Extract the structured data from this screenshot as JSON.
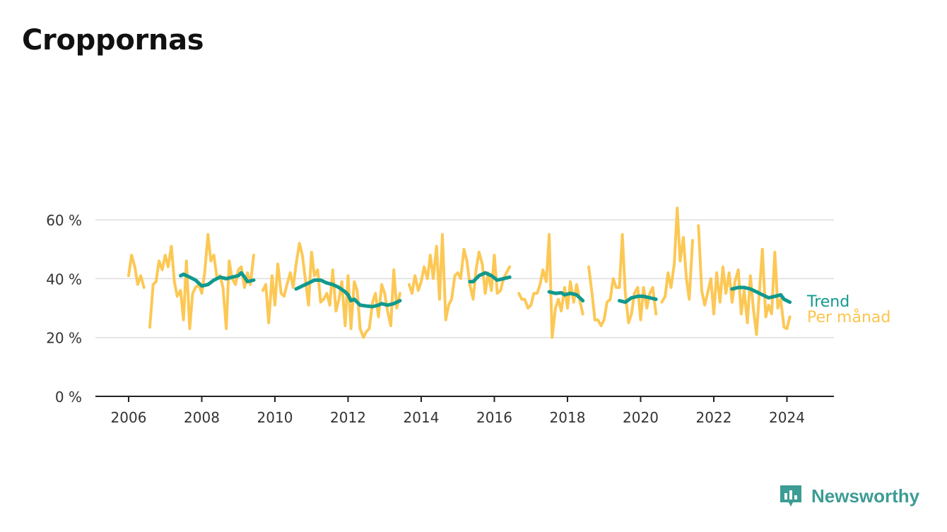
{
  "title": "Croppornas",
  "subtitle": "",
  "logo": {
    "text": "Newsworthy",
    "icon": "newsworthy-logo-icon",
    "color": "#3d9c94"
  },
  "colors": {
    "monthly": "#fcc54c",
    "trend": "#11998e",
    "grid": "#dddddd",
    "axis": "#222222",
    "text": "#333333"
  },
  "chart_data": {
    "type": "line",
    "title": "Croppornas",
    "subtitle": "",
    "xlabel": "",
    "ylabel": "",
    "ylim": [
      0,
      0.7
    ],
    "xlim": [
      2005.5,
      2025.2
    ],
    "x_ticks": [
      2006,
      2008,
      2010,
      2012,
      2014,
      2016,
      2018,
      2020,
      2022,
      2024
    ],
    "x_tick_labels": [
      "2006",
      "2008",
      "2010",
      "2012",
      "2014",
      "2016",
      "2018",
      "2020",
      "2022",
      "2024"
    ],
    "y_ticks": [
      0,
      0.2,
      0.4,
      0.6
    ],
    "y_tick_labels": [
      "0 %",
      "20 %",
      "40 %",
      "60 %"
    ],
    "grid": "horizontal",
    "legend": "inline-right",
    "series": [
      {
        "name": "Per månad",
        "color": "#fcc54c",
        "points": [
          [
            2006.0,
            0.41
          ],
          [
            2006.08,
            0.48
          ],
          [
            2006.17,
            0.44
          ],
          [
            2006.25,
            0.38
          ],
          [
            2006.33,
            0.41
          ],
          [
            2006.42,
            0.37
          ],
          null,
          [
            2006.58,
            0.235
          ],
          [
            2006.67,
            0.38
          ],
          [
            2006.75,
            0.39
          ],
          [
            2006.83,
            0.46
          ],
          [
            2006.92,
            0.43
          ],
          [
            2007.0,
            0.48
          ],
          [
            2007.08,
            0.44
          ],
          [
            2007.17,
            0.51
          ],
          [
            2007.25,
            0.39
          ],
          [
            2007.33,
            0.34
          ],
          [
            2007.42,
            0.36
          ],
          [
            2007.5,
            0.26
          ],
          [
            2007.58,
            0.46
          ],
          [
            2007.67,
            0.23
          ],
          [
            2007.75,
            0.35
          ],
          [
            2007.83,
            0.37
          ],
          [
            2007.92,
            0.38
          ],
          [
            2008.0,
            0.35
          ],
          [
            2008.08,
            0.42
          ],
          [
            2008.17,
            0.55
          ],
          [
            2008.25,
            0.46
          ],
          [
            2008.33,
            0.48
          ],
          [
            2008.42,
            0.4
          ],
          [
            2008.5,
            0.41
          ],
          [
            2008.58,
            0.37
          ],
          [
            2008.67,
            0.23
          ],
          [
            2008.75,
            0.46
          ],
          [
            2008.83,
            0.4
          ],
          [
            2008.92,
            0.38
          ],
          [
            2009.0,
            0.43
          ],
          [
            2009.08,
            0.44
          ],
          [
            2009.17,
            0.37
          ],
          [
            2009.25,
            0.42
          ],
          [
            2009.33,
            0.38
          ],
          [
            2009.42,
            0.48
          ],
          null,
          [
            2009.67,
            0.36
          ],
          [
            2009.75,
            0.38
          ],
          [
            2009.83,
            0.25
          ],
          [
            2009.92,
            0.41
          ],
          [
            2010.0,
            0.31
          ],
          [
            2010.08,
            0.45
          ],
          [
            2010.17,
            0.35
          ],
          [
            2010.25,
            0.34
          ],
          [
            2010.33,
            0.38
          ],
          [
            2010.42,
            0.42
          ],
          [
            2010.5,
            0.37
          ],
          [
            2010.58,
            0.45
          ],
          [
            2010.67,
            0.52
          ],
          [
            2010.75,
            0.48
          ],
          [
            2010.83,
            0.4
          ],
          [
            2010.92,
            0.31
          ],
          [
            2011.0,
            0.49
          ],
          [
            2011.08,
            0.41
          ],
          [
            2011.17,
            0.43
          ],
          [
            2011.25,
            0.32
          ],
          [
            2011.33,
            0.33
          ],
          [
            2011.42,
            0.35
          ],
          [
            2011.5,
            0.31
          ],
          [
            2011.58,
            0.43
          ],
          [
            2011.67,
            0.29
          ],
          [
            2011.75,
            0.33
          ],
          [
            2011.83,
            0.39
          ],
          [
            2011.92,
            0.24
          ],
          [
            2012.0,
            0.41
          ],
          [
            2012.08,
            0.23
          ],
          [
            2012.17,
            0.39
          ],
          [
            2012.25,
            0.36
          ],
          [
            2012.33,
            0.23
          ],
          [
            2012.42,
            0.2
          ],
          [
            2012.5,
            0.22
          ],
          [
            2012.58,
            0.23
          ],
          [
            2012.67,
            0.32
          ],
          [
            2012.75,
            0.35
          ],
          [
            2012.83,
            0.27
          ],
          [
            2012.92,
            0.38
          ],
          [
            2013.0,
            0.35
          ],
          [
            2013.08,
            0.29
          ],
          [
            2013.17,
            0.24
          ],
          [
            2013.25,
            0.43
          ],
          [
            2013.33,
            0.3
          ],
          [
            2013.42,
            0.35
          ],
          null,
          [
            2013.67,
            0.38
          ],
          [
            2013.75,
            0.35
          ],
          [
            2013.83,
            0.41
          ],
          [
            2013.92,
            0.36
          ],
          [
            2014.0,
            0.39
          ],
          [
            2014.08,
            0.44
          ],
          [
            2014.17,
            0.4
          ],
          [
            2014.25,
            0.48
          ],
          [
            2014.33,
            0.4
          ],
          [
            2014.42,
            0.51
          ],
          [
            2014.5,
            0.33
          ],
          [
            2014.58,
            0.55
          ],
          [
            2014.67,
            0.26
          ],
          [
            2014.75,
            0.31
          ],
          [
            2014.83,
            0.33
          ],
          [
            2014.92,
            0.41
          ],
          [
            2015.0,
            0.42
          ],
          [
            2015.08,
            0.4
          ],
          [
            2015.17,
            0.5
          ],
          [
            2015.25,
            0.46
          ],
          [
            2015.33,
            0.38
          ],
          [
            2015.42,
            0.33
          ],
          [
            2015.5,
            0.43
          ],
          [
            2015.58,
            0.49
          ],
          [
            2015.67,
            0.45
          ],
          [
            2015.75,
            0.35
          ],
          [
            2015.83,
            0.42
          ],
          [
            2015.92,
            0.36
          ],
          [
            2016.0,
            0.48
          ],
          [
            2016.08,
            0.35
          ],
          [
            2016.17,
            0.36
          ],
          [
            2016.25,
            0.4
          ],
          [
            2016.33,
            0.42
          ],
          [
            2016.42,
            0.44
          ],
          null,
          [
            2016.67,
            0.35
          ],
          [
            2016.75,
            0.33
          ],
          [
            2016.83,
            0.33
          ],
          [
            2016.92,
            0.3
          ],
          [
            2017.0,
            0.31
          ],
          [
            2017.08,
            0.35
          ],
          [
            2017.17,
            0.35
          ],
          [
            2017.25,
            0.38
          ],
          [
            2017.33,
            0.43
          ],
          [
            2017.42,
            0.39
          ],
          [
            2017.5,
            0.55
          ],
          [
            2017.58,
            0.2
          ],
          [
            2017.67,
            0.3
          ],
          [
            2017.75,
            0.33
          ],
          [
            2017.83,
            0.29
          ],
          [
            2017.92,
            0.37
          ],
          [
            2018.0,
            0.3
          ],
          [
            2018.08,
            0.39
          ],
          [
            2018.17,
            0.32
          ],
          [
            2018.25,
            0.38
          ],
          [
            2018.33,
            0.33
          ],
          [
            2018.42,
            0.28
          ],
          null,
          [
            2018.58,
            0.44
          ],
          [
            2018.67,
            0.35
          ],
          [
            2018.75,
            0.26
          ],
          [
            2018.83,
            0.26
          ],
          [
            2018.92,
            0.24
          ],
          [
            2019.0,
            0.26
          ],
          [
            2019.08,
            0.32
          ],
          [
            2019.17,
            0.33
          ],
          [
            2019.25,
            0.4
          ],
          [
            2019.33,
            0.37
          ],
          [
            2019.42,
            0.37
          ],
          [
            2019.5,
            0.55
          ],
          [
            2019.58,
            0.35
          ],
          [
            2019.67,
            0.25
          ],
          [
            2019.75,
            0.28
          ],
          [
            2019.83,
            0.35
          ],
          [
            2019.92,
            0.37
          ],
          [
            2020.0,
            0.26
          ],
          [
            2020.08,
            0.37
          ],
          [
            2020.17,
            0.3
          ],
          [
            2020.25,
            0.35
          ],
          [
            2020.33,
            0.37
          ],
          [
            2020.42,
            0.28
          ],
          null,
          [
            2020.58,
            0.32
          ],
          [
            2020.67,
            0.34
          ],
          [
            2020.75,
            0.42
          ],
          [
            2020.83,
            0.37
          ],
          [
            2020.92,
            0.45
          ],
          [
            2021.0,
            0.64
          ],
          [
            2021.08,
            0.46
          ],
          [
            2021.17,
            0.54
          ],
          [
            2021.25,
            0.4
          ],
          [
            2021.33,
            0.33
          ],
          [
            2021.42,
            0.53
          ],
          null,
          [
            2021.58,
            0.58
          ],
          [
            2021.67,
            0.36
          ],
          [
            2021.75,
            0.31
          ],
          [
            2021.83,
            0.35
          ],
          [
            2021.92,
            0.4
          ],
          [
            2022.0,
            0.28
          ],
          [
            2022.08,
            0.42
          ],
          [
            2022.17,
            0.32
          ],
          [
            2022.25,
            0.44
          ],
          [
            2022.33,
            0.35
          ],
          [
            2022.42,
            0.42
          ],
          [
            2022.5,
            0.32
          ],
          [
            2022.58,
            0.39
          ],
          [
            2022.67,
            0.43
          ],
          [
            2022.75,
            0.28
          ],
          [
            2022.83,
            0.36
          ],
          [
            2022.92,
            0.25
          ],
          [
            2023.0,
            0.41
          ],
          [
            2023.08,
            0.3
          ],
          [
            2023.17,
            0.21
          ],
          [
            2023.25,
            0.36
          ],
          [
            2023.33,
            0.5
          ],
          [
            2023.42,
            0.27
          ],
          [
            2023.5,
            0.31
          ],
          [
            2023.58,
            0.28
          ],
          [
            2023.67,
            0.49
          ],
          [
            2023.75,
            0.3
          ],
          [
            2023.83,
            0.33
          ],
          [
            2023.92,
            0.235
          ],
          [
            2024.0,
            0.23
          ],
          [
            2024.08,
            0.27
          ]
        ]
      },
      {
        "name": "Trend",
        "color": "#11998e",
        "points": [
          [
            2007.42,
            0.41
          ],
          [
            2007.5,
            0.415
          ],
          [
            2007.67,
            0.405
          ],
          [
            2007.83,
            0.395
          ],
          [
            2008.0,
            0.375
          ],
          [
            2008.17,
            0.38
          ],
          [
            2008.33,
            0.395
          ],
          [
            2008.5,
            0.405
          ],
          [
            2008.67,
            0.4
          ],
          [
            2008.83,
            0.405
          ],
          [
            2009.0,
            0.41
          ],
          [
            2009.08,
            0.42
          ],
          [
            2009.17,
            0.405
          ],
          [
            2009.25,
            0.39
          ],
          [
            2009.42,
            0.395
          ],
          null,
          [
            2010.58,
            0.365
          ],
          [
            2010.75,
            0.375
          ],
          [
            2010.92,
            0.385
          ],
          [
            2011.08,
            0.395
          ],
          [
            2011.25,
            0.395
          ],
          [
            2011.42,
            0.385
          ],
          [
            2011.58,
            0.38
          ],
          [
            2011.75,
            0.37
          ],
          [
            2011.92,
            0.355
          ],
          [
            2012.0,
            0.345
          ],
          [
            2012.08,
            0.325
          ],
          [
            2012.17,
            0.33
          ],
          [
            2012.33,
            0.31
          ],
          [
            2012.5,
            0.307
          ],
          [
            2012.67,
            0.305
          ],
          [
            2012.83,
            0.31
          ],
          [
            2012.92,
            0.315
          ],
          [
            2013.08,
            0.31
          ],
          [
            2013.25,
            0.315
          ],
          [
            2013.42,
            0.325
          ],
          null,
          [
            2015.33,
            0.39
          ],
          [
            2015.42,
            0.39
          ],
          [
            2015.58,
            0.41
          ],
          [
            2015.75,
            0.42
          ],
          [
            2015.92,
            0.41
          ],
          [
            2016.08,
            0.395
          ],
          [
            2016.25,
            0.4
          ],
          [
            2016.42,
            0.405
          ],
          null,
          [
            2017.5,
            0.355
          ],
          [
            2017.67,
            0.35
          ],
          [
            2017.83,
            0.352
          ],
          [
            2017.92,
            0.345
          ],
          [
            2018.08,
            0.35
          ],
          [
            2018.25,
            0.345
          ],
          [
            2018.42,
            0.325
          ],
          null,
          [
            2019.42,
            0.325
          ],
          [
            2019.58,
            0.32
          ],
          [
            2019.75,
            0.335
          ],
          [
            2019.92,
            0.34
          ],
          [
            2020.08,
            0.34
          ],
          [
            2020.25,
            0.335
          ],
          [
            2020.42,
            0.33
          ],
          null,
          [
            2022.5,
            0.365
          ],
          [
            2022.67,
            0.37
          ],
          [
            2022.83,
            0.37
          ],
          [
            2023.0,
            0.365
          ],
          [
            2023.17,
            0.355
          ],
          [
            2023.33,
            0.345
          ],
          [
            2023.5,
            0.335
          ],
          [
            2023.67,
            0.34
          ],
          [
            2023.83,
            0.345
          ],
          [
            2023.92,
            0.33
          ],
          [
            2024.08,
            0.32
          ]
        ]
      }
    ]
  }
}
